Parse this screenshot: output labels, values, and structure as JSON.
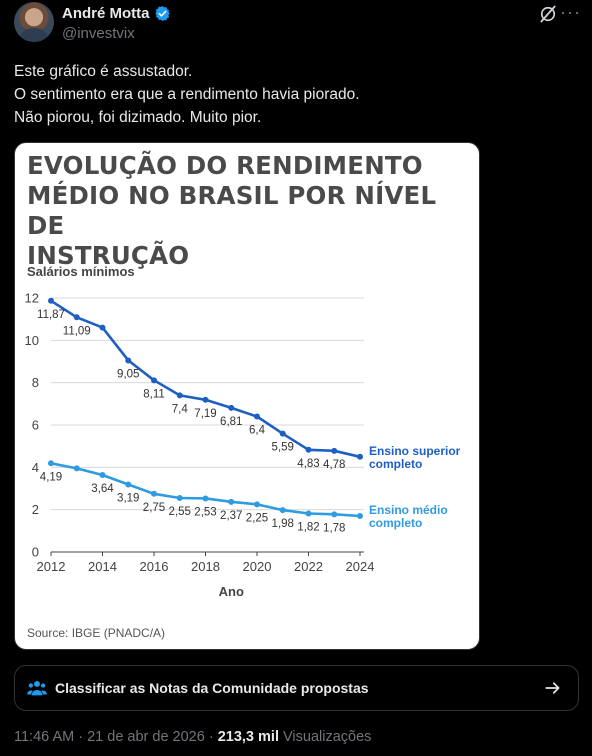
{
  "author": {
    "name": "André Motta",
    "handle": "@investvix",
    "verified_color": "#1d9bf0"
  },
  "tweet": {
    "lines": [
      "Este gráfico é assustador.",
      "O sentimento era que a rendimento havia piorado.",
      "Não piorou, foi dizimado. Muito pior."
    ]
  },
  "chart_data": {
    "type": "line",
    "title_lines": [
      "EVOLUÇÃO DO RENDIMENTO",
      "MÉDIO NO BRASIL POR NÍVEL DE",
      "INSTRUÇÃO"
    ],
    "ylabel": "Salários mínimos",
    "xlabel": "Ano",
    "source": "Source: IBGE (PNADC/A)",
    "x": [
      2012,
      2013,
      2014,
      2015,
      2016,
      2017,
      2018,
      2019,
      2020,
      2021,
      2022,
      2023,
      2024
    ],
    "xticks": [
      2012,
      2014,
      2016,
      2018,
      2020,
      2022,
      2024
    ],
    "yticks": [
      0,
      2,
      4,
      6,
      8,
      10,
      12
    ],
    "ylim": [
      0,
      12
    ],
    "series": [
      {
        "name_lines": [
          "Ensino superior",
          "completo"
        ],
        "color": "#1f5fc4",
        "values": [
          11.87,
          11.09,
          10.6,
          9.05,
          8.11,
          7.4,
          7.19,
          6.81,
          6.4,
          5.59,
          4.83,
          4.78,
          4.5
        ],
        "labels": [
          "11,87",
          "11,09",
          null,
          "9,05",
          "8,11",
          "7,4",
          "7,19",
          "6,81",
          "6,4",
          "5,59",
          "4,83",
          "4,78",
          null
        ]
      },
      {
        "name_lines": [
          "Ensino médio",
          "completo"
        ],
        "color": "#2f9be0",
        "values": [
          4.19,
          3.95,
          3.64,
          3.19,
          2.75,
          2.55,
          2.53,
          2.37,
          2.25,
          1.98,
          1.82,
          1.78,
          1.7
        ],
        "labels": [
          "4,19",
          null,
          "3,64",
          "3,19",
          "2,75",
          "2,55",
          "2,53",
          "2,37",
          "2,25",
          "1,98",
          "1,82",
          "1,78",
          null
        ]
      }
    ]
  },
  "community_notes": {
    "label": "Classificar as Notas da Comunidade propostas"
  },
  "footer": {
    "time": "11:46 AM",
    "date": "21 de abr de 2026",
    "views_count": "213,3 mil",
    "views_label": "Visualizações"
  }
}
